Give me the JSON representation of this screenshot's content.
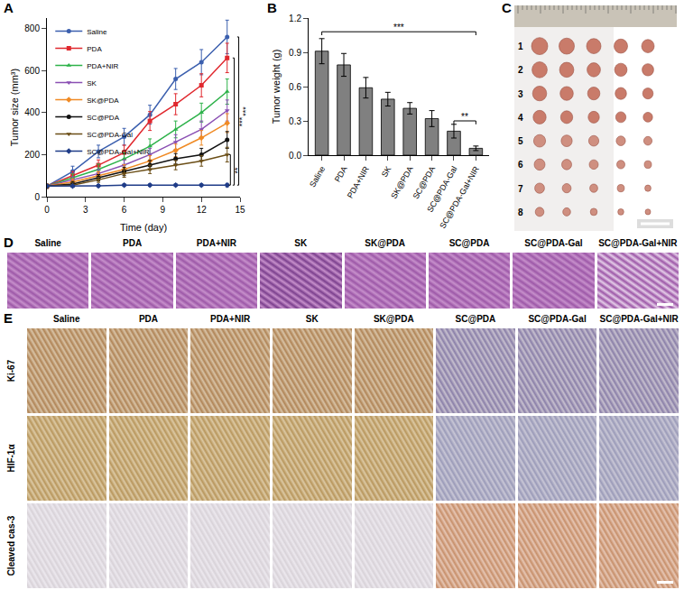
{
  "chart_data": [
    {
      "panel": "A",
      "type": "line",
      "x": [
        0,
        2,
        4,
        6,
        8,
        10,
        12,
        14
      ],
      "x_label": "Time (day)",
      "y_label": "Tumor size (mm³)",
      "xlim": [
        0,
        15
      ],
      "xticks": [
        0,
        3,
        6,
        9,
        12,
        15
      ],
      "ylim": [
        0,
        850
      ],
      "yticks": [
        0,
        200,
        400,
        600,
        800
      ],
      "legend": "top-left",
      "series": [
        {
          "name": "Saline",
          "color": "#3b5fae",
          "marker": "circle",
          "values": [
            50,
            120,
            215,
            285,
            390,
            560,
            640,
            760
          ],
          "errors": [
            10,
            25,
            30,
            40,
            45,
            50,
            60,
            80
          ]
        },
        {
          "name": "PDA",
          "color": "#e0282e",
          "marker": "square",
          "values": [
            50,
            100,
            150,
            210,
            360,
            440,
            530,
            660
          ],
          "errors": [
            10,
            20,
            25,
            35,
            45,
            50,
            55,
            70
          ]
        },
        {
          "name": "PDA+NIR",
          "color": "#2db24a",
          "marker": "triangle-up",
          "values": [
            50,
            90,
            130,
            180,
            240,
            320,
            400,
            500
          ],
          "errors": [
            10,
            18,
            25,
            30,
            35,
            40,
            45,
            60
          ]
        },
        {
          "name": "SK",
          "color": "#8a4fb3",
          "marker": "triangle-down",
          "values": [
            50,
            80,
            110,
            150,
            200,
            260,
            320,
            410
          ],
          "errors": [
            10,
            15,
            20,
            25,
            30,
            35,
            40,
            50
          ]
        },
        {
          "name": "SK@PDA",
          "color": "#f08a24",
          "marker": "diamond",
          "values": [
            50,
            70,
            100,
            130,
            170,
            220,
            280,
            350
          ],
          "errors": [
            10,
            15,
            18,
            22,
            25,
            30,
            35,
            45
          ]
        },
        {
          "name": "SC@PDA",
          "color": "#111111",
          "marker": "circle",
          "values": [
            50,
            60,
            90,
            120,
            150,
            180,
            200,
            270
          ],
          "errors": [
            8,
            12,
            15,
            20,
            22,
            25,
            30,
            40
          ]
        },
        {
          "name": "SC@PDA-Gal",
          "color": "#6b4e16",
          "marker": "triangle-down",
          "values": [
            50,
            55,
            80,
            110,
            130,
            150,
            170,
            200
          ],
          "errors": [
            8,
            10,
            12,
            18,
            20,
            22,
            25,
            35
          ]
        },
        {
          "name": "SC@PDA-Gal+NIR",
          "color": "#1f3c88",
          "marker": "diamond",
          "values": [
            50,
            50,
            52,
            55,
            55,
            55,
            55,
            55
          ],
          "errors": [
            5,
            5,
            6,
            6,
            6,
            6,
            6,
            8
          ]
        }
      ],
      "brackets": [
        {
          "x": 14.9,
          "from": 760,
          "to": 55,
          "text": "***"
        },
        {
          "x": 14.55,
          "from": 660,
          "to": 55,
          "text": "***"
        },
        {
          "x": 14.25,
          "from": 200,
          "to": 55,
          "text": "**"
        }
      ]
    },
    {
      "panel": "B",
      "type": "bar",
      "categories": [
        "Saline",
        "PDA",
        "PDA+NIR",
        "SK",
        "SK@PDA",
        "SC@PDA",
        "SC@PDA-Gal",
        "SC@PDA-Gal+NIR"
      ],
      "values": [
        0.91,
        0.79,
        0.59,
        0.49,
        0.41,
        0.32,
        0.21,
        0.06
      ],
      "errors": [
        0.11,
        0.1,
        0.09,
        0.06,
        0.05,
        0.07,
        0.06,
        0.02
      ],
      "color": "#808080",
      "y_label": "Tumor weight (g)",
      "ylim": [
        0,
        1.2
      ],
      "yticks": [
        {
          "value": 0,
          "label": "0.0"
        },
        0.3,
        0.6,
        0.9,
        1.2
      ],
      "brackets": [
        {
          "from": "Saline",
          "to": "SC@PDA-Gal+NIR",
          "y": 1.08,
          "text": "***"
        },
        {
          "from": "SC@PDA-Gal",
          "to": "SC@PDA-Gal+NIR",
          "y": 0.3,
          "text": "**"
        }
      ]
    }
  ],
  "photo_panels": {
    "C": {
      "rows": [
        "1",
        "2",
        "3",
        "4",
        "5",
        "6",
        "7",
        "8"
      ]
    },
    "D": {
      "columns": [
        "Saline",
        "PDA",
        "PDA+NIR",
        "SK",
        "SK@PDA",
        "SC@PDA",
        "SC@PDA-Gal",
        "SC@PDA-Gal+NIR"
      ]
    },
    "E": {
      "columns": [
        "Saline",
        "PDA",
        "PDA+NIR",
        "SK",
        "SK@PDA",
        "SC@PDA",
        "SC@PDA-Gal",
        "SC@PDA-Gal+NIR"
      ],
      "rows": [
        "Ki-67",
        "HIF-1α",
        "Cleaved cas-3"
      ]
    }
  }
}
